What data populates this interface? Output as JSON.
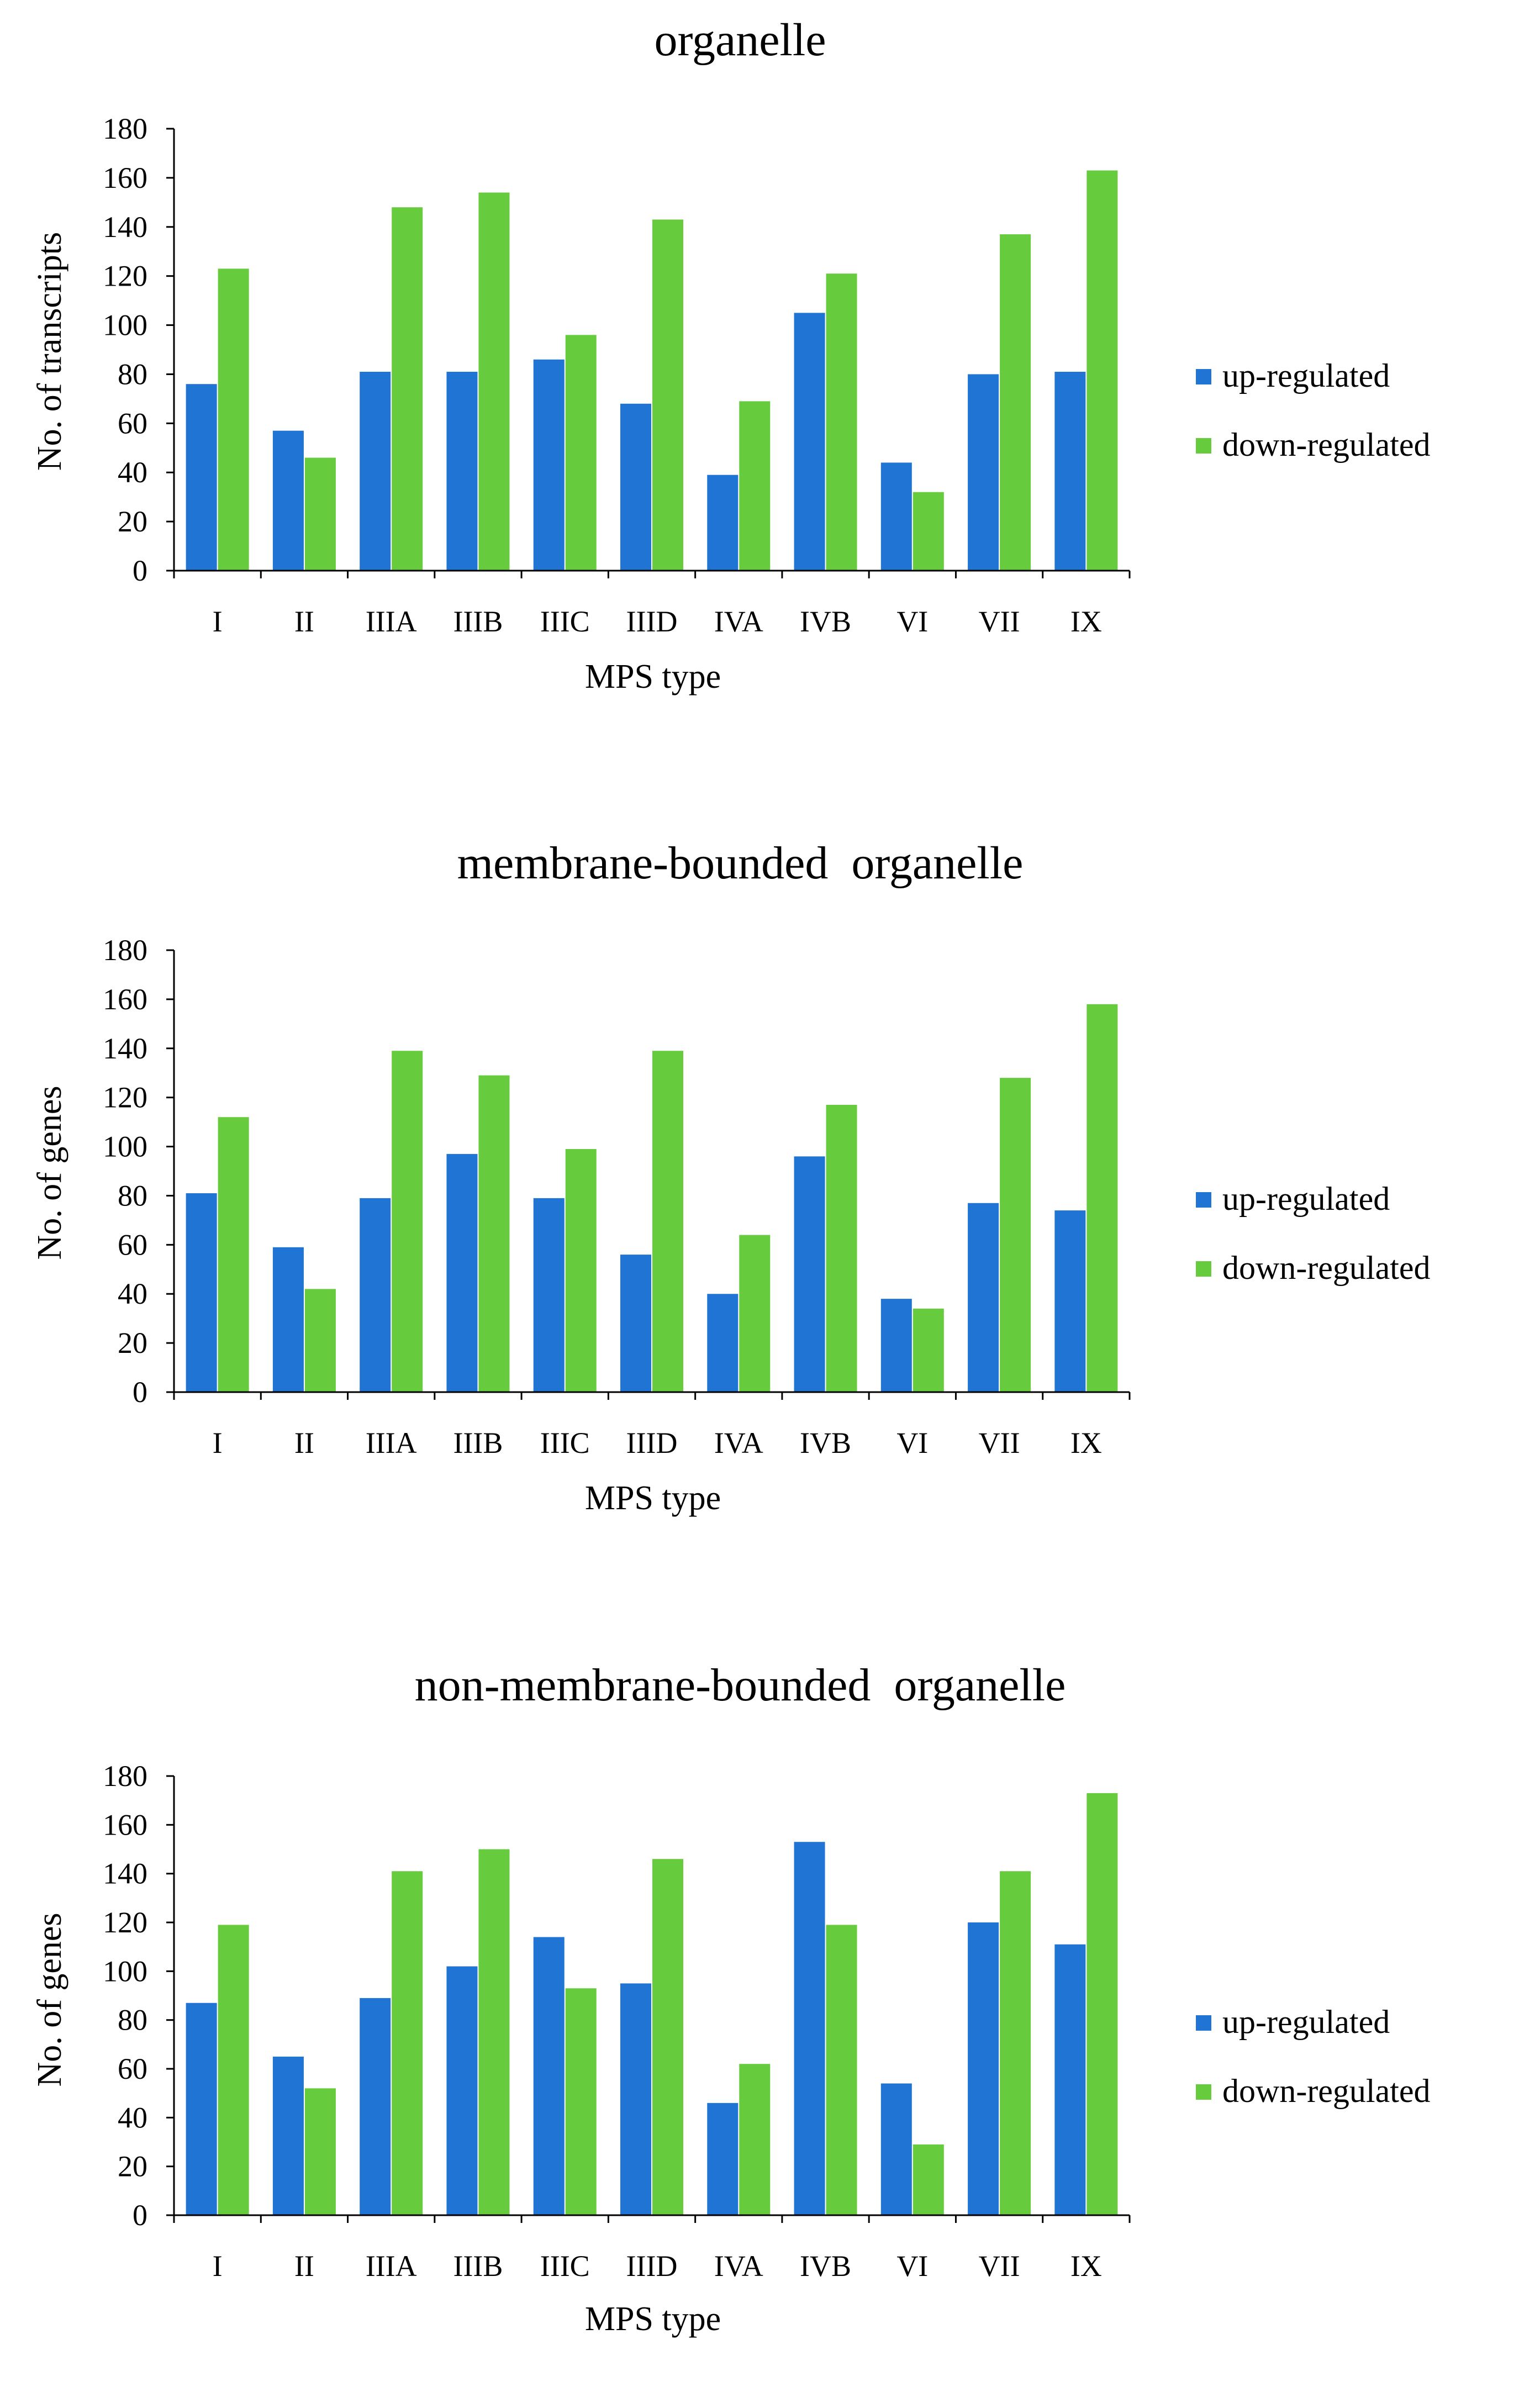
{
  "colors": {
    "up": "#1f74d4",
    "down": "#66cc3d",
    "axis": "#000000"
  },
  "chart_data": [
    {
      "type": "bar",
      "title": "organelle",
      "xlabel": "MPS type",
      "ylabel": "No. of transcripts",
      "ylim": [
        0,
        180
      ],
      "yticks": [
        "0",
        "20",
        "40",
        "60",
        "80",
        "100",
        "120",
        "140",
        "160",
        "180"
      ],
      "categories": [
        "I",
        "II",
        "IIIA",
        "IIIB",
        "IIIC",
        "IIID",
        "IVA",
        "IVB",
        "VI",
        "VII",
        "IX"
      ],
      "series": [
        {
          "name": "up-regulated",
          "values": [
            76,
            57,
            81,
            81,
            86,
            68,
            39,
            105,
            44,
            80,
            81
          ]
        },
        {
          "name": "down-regulated",
          "values": [
            123,
            46,
            148,
            154,
            96,
            143,
            69,
            121,
            32,
            137,
            163
          ]
        }
      ],
      "legend": [
        "up-regulated",
        "down-regulated"
      ]
    },
    {
      "type": "bar",
      "title": "membrane-bounded  organelle",
      "xlabel": "MPS type",
      "ylabel": "No. of genes",
      "ylim": [
        0,
        180
      ],
      "yticks": [
        "0",
        "20",
        "40",
        "60",
        "80",
        "100",
        "120",
        "140",
        "160",
        "180"
      ],
      "categories": [
        "I",
        "II",
        "IIIA",
        "IIIB",
        "IIIC",
        "IIID",
        "IVA",
        "IVB",
        "VI",
        "VII",
        "IX"
      ],
      "series": [
        {
          "name": "up-regulated",
          "values": [
            81,
            59,
            79,
            97,
            79,
            56,
            40,
            96,
            38,
            77,
            74
          ]
        },
        {
          "name": "down-regulated",
          "values": [
            112,
            42,
            139,
            129,
            99,
            139,
            64,
            117,
            34,
            128,
            158
          ]
        }
      ],
      "legend": [
        "up-regulated",
        "down-regulated"
      ]
    },
    {
      "type": "bar",
      "title": "non-membrane-bounded  organelle",
      "xlabel": "MPS type",
      "ylabel": "No. of genes",
      "ylim": [
        0,
        180
      ],
      "yticks": [
        "0",
        "20",
        "40",
        "60",
        "80",
        "100",
        "120",
        "140",
        "160",
        "180"
      ],
      "categories": [
        "I",
        "II",
        "IIIA",
        "IIIB",
        "IIIC",
        "IIID",
        "IVA",
        "IVB",
        "VI",
        "VII",
        "IX"
      ],
      "series": [
        {
          "name": "up-regulated",
          "values": [
            87,
            65,
            89,
            102,
            114,
            95,
            46,
            153,
            54,
            120,
            111
          ]
        },
        {
          "name": "down-regulated",
          "values": [
            119,
            52,
            141,
            150,
            93,
            146,
            62,
            119,
            29,
            141,
            173
          ]
        }
      ],
      "legend": [
        "up-regulated",
        "down-regulated"
      ]
    }
  ]
}
